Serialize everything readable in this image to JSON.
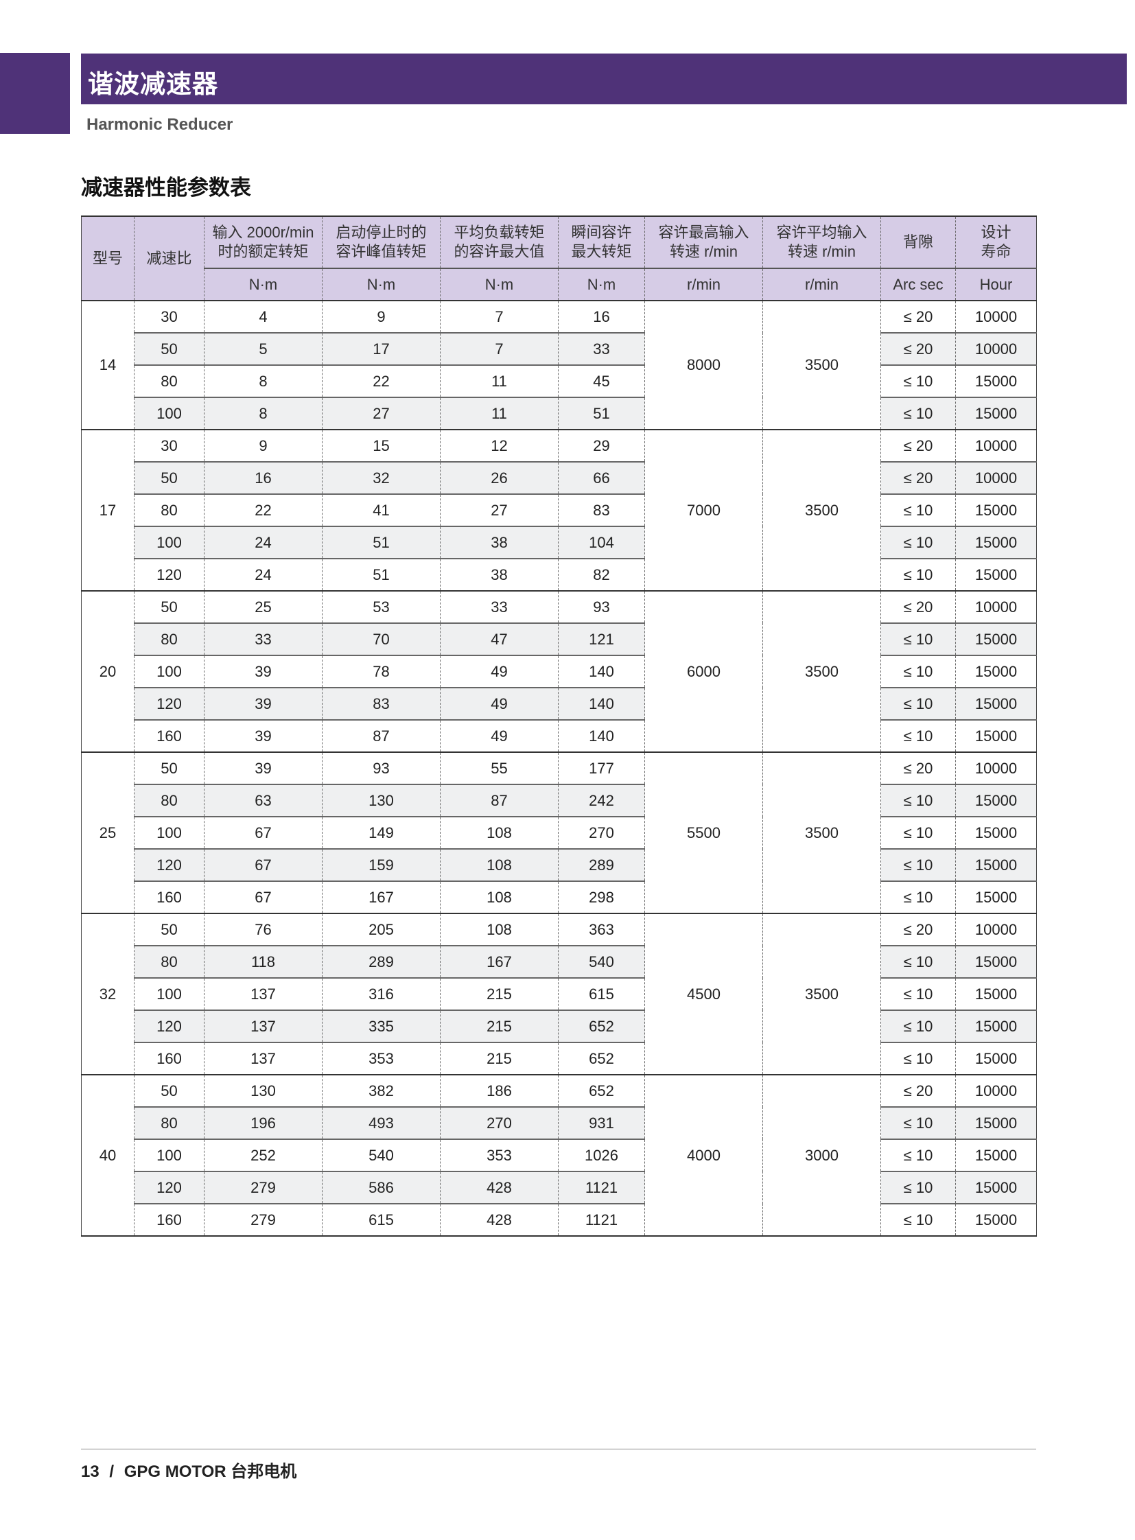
{
  "header": {
    "title": "谐波减速器",
    "subtitle": "Harmonic Reducer"
  },
  "section_title": "减速器性能参数表",
  "colors": {
    "brand_purple": "#4f3278",
    "header_lavender": "#d6cce6",
    "row_shade": "#eff0f1"
  },
  "table": {
    "columns": [
      {
        "label": "型号",
        "unit": ""
      },
      {
        "label": "减速比",
        "unit": ""
      },
      {
        "label": "输入 2000r/min\n时的额定转矩",
        "unit": "N·m"
      },
      {
        "label": "启动停止时的\n容许峰值转矩",
        "unit": "N·m"
      },
      {
        "label": "平均负载转矩\n的容许最大值",
        "unit": "N·m"
      },
      {
        "label": "瞬间容许\n最大转矩",
        "unit": "N·m"
      },
      {
        "label": "容许最高输入\n转速 r/min",
        "unit": "r/min"
      },
      {
        "label": "容许平均输入\n转速 r/min",
        "unit": "r/min"
      },
      {
        "label": "背隙",
        "unit": "Arc sec"
      },
      {
        "label": "设计\n寿命",
        "unit": "Hour"
      }
    ],
    "groups": [
      {
        "model": "14",
        "max_speed": "8000",
        "avg_speed": "3500",
        "rows": [
          [
            "30",
            "4",
            "9",
            "7",
            "16",
            "≤ 20",
            "10000"
          ],
          [
            "50",
            "5",
            "17",
            "7",
            "33",
            "≤ 20",
            "10000"
          ],
          [
            "80",
            "8",
            "22",
            "11",
            "45",
            "≤ 10",
            "15000"
          ],
          [
            "100",
            "8",
            "27",
            "11",
            "51",
            "≤ 10",
            "15000"
          ]
        ]
      },
      {
        "model": "17",
        "max_speed": "7000",
        "avg_speed": "3500",
        "rows": [
          [
            "30",
            "9",
            "15",
            "12",
            "29",
            "≤ 20",
            "10000"
          ],
          [
            "50",
            "16",
            "32",
            "26",
            "66",
            "≤ 20",
            "10000"
          ],
          [
            "80",
            "22",
            "41",
            "27",
            "83",
            "≤ 10",
            "15000"
          ],
          [
            "100",
            "24",
            "51",
            "38",
            "104",
            "≤ 10",
            "15000"
          ],
          [
            "120",
            "24",
            "51",
            "38",
            "82",
            "≤ 10",
            "15000"
          ]
        ]
      },
      {
        "model": "20",
        "max_speed": "6000",
        "avg_speed": "3500",
        "rows": [
          [
            "50",
            "25",
            "53",
            "33",
            "93",
            "≤ 20",
            "10000"
          ],
          [
            "80",
            "33",
            "70",
            "47",
            "121",
            "≤ 10",
            "15000"
          ],
          [
            "100",
            "39",
            "78",
            "49",
            "140",
            "≤ 10",
            "15000"
          ],
          [
            "120",
            "39",
            "83",
            "49",
            "140",
            "≤ 10",
            "15000"
          ],
          [
            "160",
            "39",
            "87",
            "49",
            "140",
            "≤ 10",
            "15000"
          ]
        ]
      },
      {
        "model": "25",
        "max_speed": "5500",
        "avg_speed": "3500",
        "rows": [
          [
            "50",
            "39",
            "93",
            "55",
            "177",
            "≤ 20",
            "10000"
          ],
          [
            "80",
            "63",
            "130",
            "87",
            "242",
            "≤ 10",
            "15000"
          ],
          [
            "100",
            "67",
            "149",
            "108",
            "270",
            "≤ 10",
            "15000"
          ],
          [
            "120",
            "67",
            "159",
            "108",
            "289",
            "≤ 10",
            "15000"
          ],
          [
            "160",
            "67",
            "167",
            "108",
            "298",
            "≤ 10",
            "15000"
          ]
        ]
      },
      {
        "model": "32",
        "max_speed": "4500",
        "avg_speed": "3500",
        "rows": [
          [
            "50",
            "76",
            "205",
            "108",
            "363",
            "≤ 20",
            "10000"
          ],
          [
            "80",
            "118",
            "289",
            "167",
            "540",
            "≤ 10",
            "15000"
          ],
          [
            "100",
            "137",
            "316",
            "215",
            "615",
            "≤ 10",
            "15000"
          ],
          [
            "120",
            "137",
            "335",
            "215",
            "652",
            "≤ 10",
            "15000"
          ],
          [
            "160",
            "137",
            "353",
            "215",
            "652",
            "≤ 10",
            "15000"
          ]
        ]
      },
      {
        "model": "40",
        "max_speed": "4000",
        "avg_speed": "3000",
        "rows": [
          [
            "50",
            "130",
            "382",
            "186",
            "652",
            "≤ 20",
            "10000"
          ],
          [
            "80",
            "196",
            "493",
            "270",
            "931",
            "≤ 10",
            "15000"
          ],
          [
            "100",
            "252",
            "540",
            "353",
            "1026",
            "≤ 10",
            "15000"
          ],
          [
            "120",
            "279",
            "586",
            "428",
            "1121",
            "≤ 10",
            "15000"
          ],
          [
            "160",
            "279",
            "615",
            "428",
            "1121",
            "≤ 10",
            "15000"
          ]
        ]
      }
    ]
  },
  "footer": {
    "page": "13",
    "separator": "/",
    "brand": "GPG MOTOR 台邦电机"
  }
}
